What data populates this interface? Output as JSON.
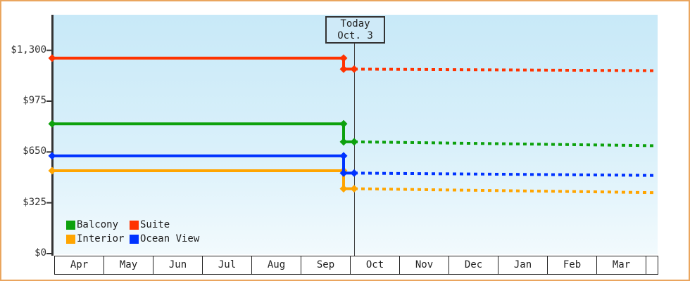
{
  "window": {
    "border_color": "#eaa55e",
    "background": "#ffffff"
  },
  "chart_data": {
    "type": "line",
    "title": "",
    "x_months": [
      "Apr",
      "May",
      "Jun",
      "Jul",
      "Aug",
      "Sep",
      "Oct",
      "Nov",
      "Dec",
      "Jan",
      "Feb",
      "Mar"
    ],
    "y_ticks": [
      {
        "label": "$0",
        "value": 0
      },
      {
        "label": "$325",
        "value": 325
      },
      {
        "label": "$650",
        "value": 650
      },
      {
        "label": "$975",
        "value": 975
      },
      {
        "label": "$1,300",
        "value": 1300
      }
    ],
    "ylim": [
      0,
      1530
    ],
    "grid": false,
    "legend_position": "bottom-left",
    "today_annotation": {
      "line1": "Today",
      "line2": "Oct. 3"
    },
    "series": [
      {
        "name": "Balcony",
        "color": "#0da10d",
        "value_before_today": 830,
        "value_after_today": 715,
        "value_end_forecast": 690
      },
      {
        "name": "Suite",
        "color": "#ff3300",
        "value_before_today": 1250,
        "value_after_today": 1180,
        "value_end_forecast": 1170
      },
      {
        "name": "Interior",
        "color": "#ffa500",
        "value_before_today": 530,
        "value_after_today": 415,
        "value_end_forecast": 390
      },
      {
        "name": "Ocean View",
        "color": "#0033ff",
        "value_before_today": 625,
        "value_after_today": 515,
        "value_end_forecast": 500
      }
    ],
    "style": {
      "solid_before_today": true,
      "dashed_after_today": true,
      "axis_color": "#333333",
      "plot_bg_top": "#c8e9f8",
      "plot_bg_bottom": "#f2fafd"
    }
  }
}
